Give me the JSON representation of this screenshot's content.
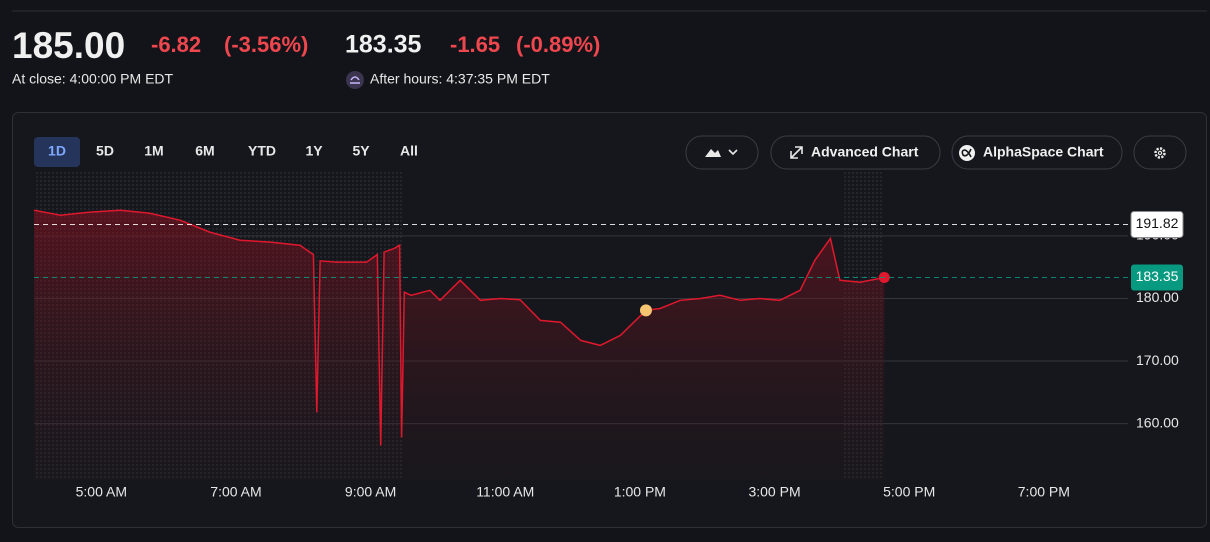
{
  "header": {
    "price": "185.00",
    "change": "-6.82",
    "change_percent": "(-3.56%)",
    "close_label": "At close: 4:00:00 PM EDT",
    "after_price": "183.35",
    "after_change": "-1.65",
    "after_change_percent": "(-0.89%)",
    "after_label": "After hours: 4:37:35 PM EDT"
  },
  "toolbar": {
    "ranges": [
      "1D",
      "5D",
      "1M",
      "6M",
      "YTD",
      "1Y",
      "5Y",
      "All"
    ],
    "active_range": 0,
    "buttons": [
      "Advanced Chart",
      "AlphaSpace Chart"
    ]
  },
  "chart_data": {
    "type": "line",
    "x": [
      4.0,
      4.39,
      4.83,
      5.28,
      5.72,
      6.17,
      6.61,
      7.06,
      7.51,
      7.95,
      8.15,
      8.2,
      8.25,
      8.5,
      8.94,
      9.1,
      9.15,
      9.2,
      9.35,
      9.43,
      9.46,
      9.5,
      9.6,
      9.88,
      10.03,
      10.33,
      10.63,
      10.93,
      11.22,
      11.52,
      11.82,
      12.12,
      12.41,
      12.71,
      13.09,
      13.3,
      13.6,
      13.9,
      14.19,
      14.49,
      14.78,
      15.08,
      15.38,
      15.6,
      15.83,
      15.97,
      16.27,
      16.63
    ],
    "series": [
      {
        "color": "#e0182d",
        "values": [
          194.1,
          193.3,
          193.8,
          194.1,
          193.6,
          192.5,
          190.6,
          189.3,
          189.0,
          188.5,
          187.0,
          161.8,
          186.0,
          185.8,
          185.8,
          187.0,
          156.5,
          187.4,
          188.0,
          188.5,
          157.8,
          181.0,
          180.5,
          181.3,
          179.7,
          182.9,
          179.7,
          180.0,
          179.8,
          176.5,
          176.2,
          173.3,
          172.5,
          174.1,
          178.1,
          178.4,
          179.7,
          180.0,
          180.5,
          179.7,
          180.0,
          179.7,
          181.3,
          186.1,
          189.6,
          182.9,
          182.6,
          183.35
        ]
      }
    ],
    "xlim": [
      4,
      20.25
    ],
    "xticks": [
      {
        "value": 5,
        "label": "5:00 AM"
      },
      {
        "value": 7,
        "label": "7:00 AM"
      },
      {
        "value": 9,
        "label": "9:00 AM"
      },
      {
        "value": 11,
        "label": "11:00 AM"
      },
      {
        "value": 13,
        "label": "1:00 PM"
      },
      {
        "value": 15,
        "label": "3:00 PM"
      },
      {
        "value": 17,
        "label": "5:00 PM"
      },
      {
        "value": 19,
        "label": "7:00 PM"
      }
    ],
    "ylim": [
      151,
      200.2
    ],
    "yticks": [
      {
        "value": 160,
        "label": "160.00"
      },
      {
        "value": 170,
        "label": "170.00"
      },
      {
        "value": 180,
        "label": "180.00"
      },
      {
        "value": 190,
        "label": "190.00"
      }
    ],
    "grid": true,
    "reference_lines": [
      {
        "value": 191.82,
        "color": "#ffffff"
      },
      {
        "value": 183.35,
        "color": "#089981"
      }
    ]
  }
}
